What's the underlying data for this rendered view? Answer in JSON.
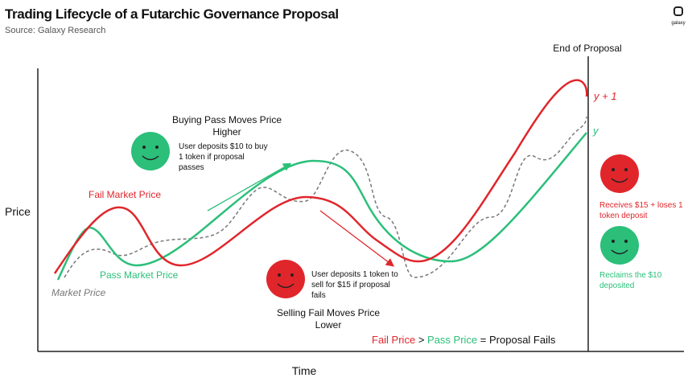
{
  "header": {
    "title": "Trading Lifecycle of a Futarchic Governance Proposal",
    "source": "Source: Galaxy Research",
    "logo": "galaxy"
  },
  "axes": {
    "y_label": "Price",
    "x_label": "Time",
    "end_label": "End of Proposal"
  },
  "curve_labels": {
    "fail": "Fail Market Price",
    "pass": "Pass Market Price",
    "market": "Market Price",
    "y_plus_1": "y + 1",
    "y": "y"
  },
  "buy": {
    "title": [
      "Buying Pass Moves Price",
      "Higher"
    ],
    "note": [
      "User deposits $10 to buy",
      "1 token if proposal",
      "passes"
    ]
  },
  "sell": {
    "note": [
      "User deposits 1 token to",
      "sell for $15 if proposal",
      "fails"
    ],
    "title": [
      "Selling Fail Moves Price",
      "Lower"
    ]
  },
  "outcome": {
    "fail_note": [
      "Receives $15 + loses 1",
      "token deposit"
    ],
    "pass_note": [
      "Reclaims the $10",
      "deposited"
    ]
  },
  "conclusion": {
    "fail_price": "Fail Price",
    "gt": ">",
    "pass_price": "Pass Price",
    "eq": "=",
    "result": "Proposal Fails"
  }
}
